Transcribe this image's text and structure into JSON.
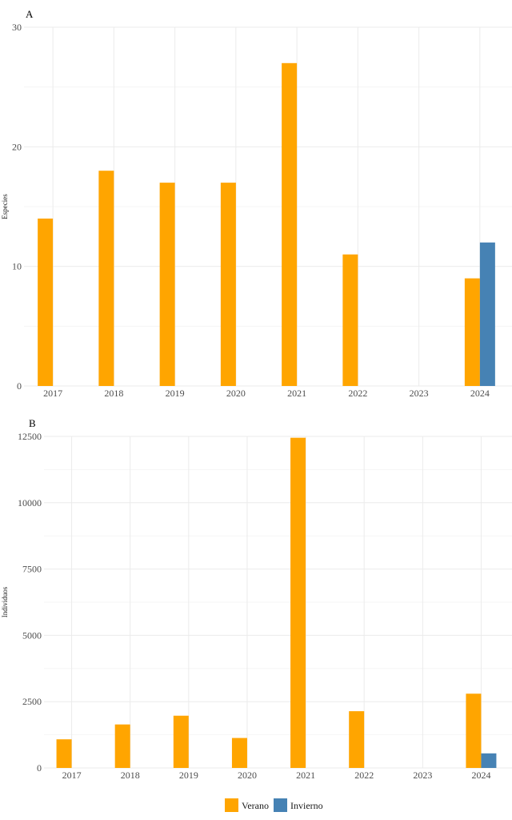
{
  "chart_data": [
    {
      "panel": "A",
      "type": "bar",
      "categories": [
        "2017",
        "2018",
        "2019",
        "2020",
        "2021",
        "2022",
        "2023",
        "2024"
      ],
      "series": [
        {
          "name": "Verano",
          "values": [
            14,
            18,
            17,
            17,
            27,
            11,
            null,
            9
          ]
        },
        {
          "name": "Invierno",
          "values": [
            null,
            null,
            null,
            null,
            null,
            null,
            null,
            12
          ]
        }
      ],
      "ylabel": "Especies",
      "xlabel": "",
      "ylim": [
        0,
        30
      ],
      "yticks": [
        0,
        10,
        20,
        30
      ],
      "grid": true
    },
    {
      "panel": "B",
      "type": "bar",
      "categories": [
        "2017",
        "2018",
        "2019",
        "2020",
        "2021",
        "2022",
        "2023",
        "2024"
      ],
      "series": [
        {
          "name": "Verano",
          "values": [
            1080,
            1640,
            1970,
            1130,
            12450,
            2140,
            null,
            2800
          ]
        },
        {
          "name": "Invierno",
          "values": [
            null,
            null,
            null,
            null,
            null,
            null,
            null,
            550
          ]
        }
      ],
      "ylabel": "Individuos",
      "xlabel": "",
      "ylim": [
        0,
        12500
      ],
      "yticks": [
        0,
        2500,
        5000,
        7500,
        10000,
        12500
      ],
      "grid": true
    }
  ],
  "legend": {
    "placement": "bottom",
    "items": [
      {
        "name": "Verano",
        "color": "#FFA500"
      },
      {
        "name": "Invierno",
        "color": "#4682B4"
      }
    ]
  },
  "colors": {
    "Verano": "#FFA500",
    "Invierno": "#4682B4",
    "grid": "#ebebeb"
  }
}
